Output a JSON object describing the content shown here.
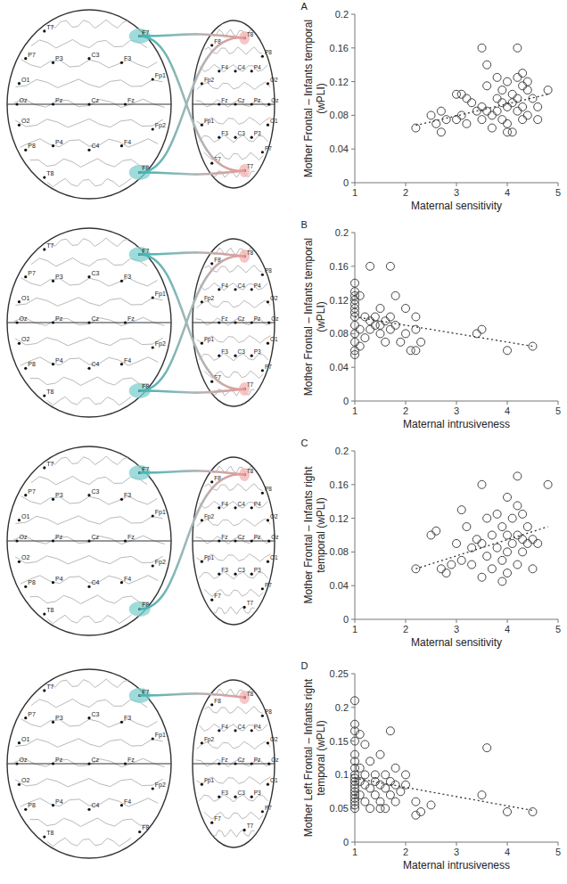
{
  "chart_data": [
    {
      "type": "scatter",
      "title": "A",
      "xlabel": "Maternal sensitivity",
      "ylabel": "Mother Frontal – Infants temporal (wPLI)",
      "xlim": [
        1,
        5
      ],
      "xticks": [
        1,
        2,
        3,
        4,
        5
      ],
      "ylim": [
        0,
        0.2
      ],
      "yticks": [
        0,
        0.04,
        0.08,
        0.12,
        0.16,
        0.2
      ],
      "color": "#444444",
      "marker": "open-circle",
      "x": [
        2.2,
        2.5,
        2.6,
        2.7,
        2.7,
        2.8,
        3.0,
        3.0,
        3.1,
        3.1,
        3.2,
        3.2,
        3.3,
        3.4,
        3.5,
        3.5,
        3.6,
        3.6,
        3.6,
        3.7,
        3.7,
        3.8,
        3.8,
        3.8,
        3.9,
        3.9,
        3.9,
        4.0,
        4.0,
        4.0,
        4.1,
        4.1,
        4.2,
        4.2,
        4.2,
        4.2,
        4.3,
        4.3,
        4.3,
        4.3,
        4.4,
        4.4,
        4.4,
        4.5,
        4.6,
        4.6,
        4.8,
        4.1,
        3.5,
        4.0
      ],
      "values": [
        0.065,
        0.08,
        0.07,
        0.085,
        0.06,
        0.075,
        0.105,
        0.075,
        0.105,
        0.08,
        0.1,
        0.07,
        0.095,
        0.085,
        0.16,
        0.09,
        0.14,
        0.115,
        0.085,
        0.08,
        0.065,
        0.125,
        0.1,
        0.085,
        0.11,
        0.095,
        0.075,
        0.12,
        0.09,
        0.06,
        0.105,
        0.06,
        0.16,
        0.125,
        0.1,
        0.085,
        0.13,
        0.115,
        0.09,
        0.075,
        0.12,
        0.11,
        0.08,
        0.1,
        0.09,
        0.075,
        0.11,
        0.095,
        0.075,
        0.07
      ],
      "trend": {
        "x": [
          2.2,
          4.8
        ],
        "values": [
          0.068,
          0.105
        ],
        "line_style": "dotted"
      },
      "connections": [
        [
          "F7",
          "T8"
        ],
        [
          "F7",
          "T7"
        ],
        [
          "F8",
          "T8"
        ],
        [
          "F8",
          "T7"
        ]
      ]
    },
    {
      "type": "scatter",
      "title": "B",
      "xlabel": "Maternal intrusiveness",
      "ylabel": "Mother Frontal – Infants temporal (wPLI)",
      "xlim": [
        1,
        5
      ],
      "xticks": [
        1,
        2,
        3,
        4,
        5
      ],
      "ylim": [
        0,
        0.2
      ],
      "yticks": [
        0,
        0.04,
        0.08,
        0.12,
        0.16,
        0.2
      ],
      "color": "#444444",
      "marker": "open-circle",
      "x": [
        1,
        1,
        1,
        1,
        1,
        1,
        1,
        1,
        1,
        1,
        1,
        1,
        1,
        1.1,
        1.1,
        1.1,
        1.2,
        1.2,
        1.3,
        1.3,
        1.3,
        1.4,
        1.4,
        1.5,
        1.5,
        1.5,
        1.6,
        1.6,
        1.7,
        1.7,
        1.7,
        1.8,
        1.8,
        1.9,
        2.0,
        2.0,
        2.1,
        2.2,
        2.2,
        2.2,
        2.3,
        3.4,
        3.5,
        4.0,
        4.5
      ],
      "values": [
        0.14,
        0.13,
        0.125,
        0.12,
        0.115,
        0.11,
        0.105,
        0.1,
        0.09,
        0.08,
        0.07,
        0.06,
        0.055,
        0.125,
        0.085,
        0.065,
        0.1,
        0.075,
        0.16,
        0.095,
        0.085,
        0.1,
        0.09,
        0.11,
        0.09,
        0.08,
        0.095,
        0.07,
        0.16,
        0.1,
        0.085,
        0.125,
        0.09,
        0.07,
        0.11,
        0.08,
        0.06,
        0.1,
        0.085,
        0.06,
        0.07,
        0.08,
        0.085,
        0.06,
        0.065
      ],
      "trend": {
        "x": [
          1,
          4.5
        ],
        "values": [
          0.1,
          0.065
        ],
        "line_style": "dotted"
      },
      "connections": [
        [
          "F7",
          "T8"
        ],
        [
          "F7",
          "T7"
        ],
        [
          "F8",
          "T8"
        ],
        [
          "F8",
          "T7"
        ]
      ]
    },
    {
      "type": "scatter",
      "title": "C",
      "xlabel": "Maternal sensitivity",
      "ylabel": "Mother Frontal – Infants right temporal (wPLI)",
      "xlim": [
        1,
        5
      ],
      "xticks": [
        1,
        2,
        3,
        4,
        5
      ],
      "ylim": [
        0,
        0.2
      ],
      "yticks": [
        0,
        0.04,
        0.08,
        0.12,
        0.16,
        0.2
      ],
      "color": "#444444",
      "marker": "open-circle",
      "x": [
        2.2,
        2.5,
        2.6,
        2.7,
        2.8,
        2.9,
        3.0,
        3.1,
        3.1,
        3.2,
        3.3,
        3.4,
        3.5,
        3.5,
        3.5,
        3.6,
        3.6,
        3.7,
        3.7,
        3.8,
        3.8,
        3.9,
        3.9,
        4.0,
        4.0,
        4.0,
        4.0,
        4.1,
        4.1,
        4.2,
        4.2,
        4.2,
        4.2,
        4.3,
        4.3,
        4.3,
        4.4,
        4.4,
        4.5,
        4.6,
        4.8,
        3.3,
        3.9,
        4.5
      ],
      "values": [
        0.06,
        0.1,
        0.105,
        0.06,
        0.055,
        0.065,
        0.09,
        0.13,
        0.07,
        0.11,
        0.085,
        0.095,
        0.16,
        0.09,
        0.05,
        0.12,
        0.075,
        0.1,
        0.06,
        0.125,
        0.085,
        0.11,
        0.07,
        0.145,
        0.1,
        0.08,
        0.055,
        0.12,
        0.09,
        0.17,
        0.135,
        0.1,
        0.065,
        0.125,
        0.095,
        0.08,
        0.11,
        0.09,
        0.095,
        0.09,
        0.16,
        0.065,
        0.045,
        0.06
      ],
      "trend": {
        "x": [
          2.2,
          4.8
        ],
        "values": [
          0.06,
          0.11
        ],
        "line_style": "dotted"
      },
      "connections": [
        [
          "F7",
          "T8"
        ],
        [
          "F8",
          "T8"
        ]
      ]
    },
    {
      "type": "scatter",
      "title": "D",
      "xlabel": "Maternal intrusiveness",
      "ylabel": "Mother Left Frontal – Infants right temporal (wPLI)",
      "xlim": [
        1,
        5
      ],
      "xticks": [
        1,
        2,
        3,
        4,
        5
      ],
      "ylim": [
        0,
        0.25
      ],
      "yticks": [
        0,
        0.05,
        0.1,
        0.15,
        0.2,
        0.25
      ],
      "color": "#444444",
      "marker": "open-circle",
      "x": [
        1,
        1,
        1,
        1,
        1,
        1,
        1,
        1,
        1,
        1,
        1,
        1,
        1,
        1,
        1,
        1,
        1,
        1,
        1.1,
        1.1,
        1.1,
        1.1,
        1.2,
        1.2,
        1.2,
        1.2,
        1.3,
        1.3,
        1.3,
        1.4,
        1.4,
        1.4,
        1.5,
        1.5,
        1.5,
        1.5,
        1.6,
        1.6,
        1.6,
        1.7,
        1.7,
        1.7,
        1.8,
        1.8,
        1.8,
        1.9,
        2.0,
        2.0,
        2.2,
        2.2,
        2.3,
        2.5,
        3.5,
        3.6,
        4.0,
        4.5
      ],
      "values": [
        0.21,
        0.175,
        0.165,
        0.15,
        0.13,
        0.12,
        0.11,
        0.1,
        0.095,
        0.09,
        0.085,
        0.08,
        0.075,
        0.07,
        0.065,
        0.06,
        0.055,
        0.05,
        0.16,
        0.11,
        0.09,
        0.07,
        0.145,
        0.1,
        0.085,
        0.06,
        0.12,
        0.08,
        0.05,
        0.1,
        0.09,
        0.07,
        0.13,
        0.085,
        0.06,
        0.05,
        0.1,
        0.08,
        0.05,
        0.165,
        0.09,
        0.07,
        0.11,
        0.085,
        0.06,
        0.075,
        0.1,
        0.085,
        0.04,
        0.06,
        0.045,
        0.055,
        0.07,
        0.14,
        0.045,
        0.045
      ],
      "trend": {
        "x": [
          1,
          4.5
        ],
        "values": [
          0.095,
          0.047
        ],
        "line_style": "dotted"
      },
      "connections": [
        [
          "F7",
          "T8"
        ]
      ]
    }
  ],
  "brain": {
    "electrodes": [
      "T7",
      "F7",
      "P7",
      "O1",
      "Oz",
      "O2",
      "P8",
      "T8",
      "F8",
      "P3",
      "C3",
      "F3",
      "Pz",
      "Cz",
      "Fz",
      "P4",
      "C4",
      "F4",
      "Fp1",
      "Fp2"
    ]
  }
}
